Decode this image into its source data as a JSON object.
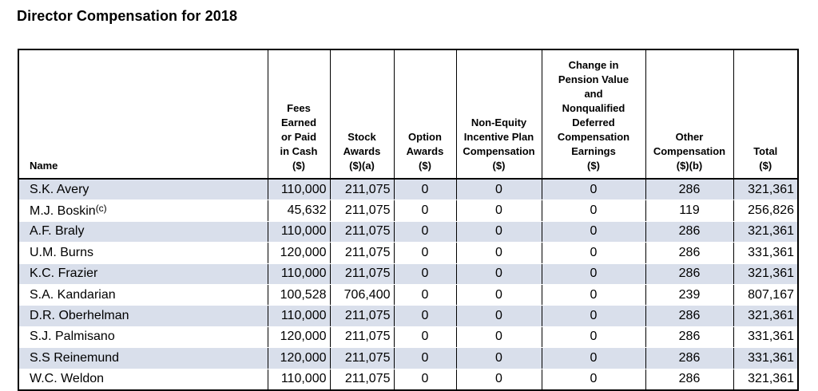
{
  "page": {
    "title": "Director Compensation for 2018"
  },
  "table": {
    "headers": {
      "name": "Name",
      "fees": "Fees\nEarned\nor Paid\nin Cash\n($)",
      "stock": "Stock\nAwards\n($)(a)",
      "option": "Option\nAwards\n($)",
      "non_equity": "Non-Equity\nIncentive Plan\nCompensation\n($)",
      "pension": "Change in\nPension Value\nand\nNonqualified\nDeferred\nCompensation\nEarnings\n($)",
      "other": "Other\nCompensation\n($)(b)",
      "total": "Total\n($)"
    },
    "rows": [
      {
        "name": "S.K. Avery",
        "note": "",
        "fees": "110,000",
        "stock": "211,075",
        "option": "0",
        "non_equity": "0",
        "pension": "0",
        "other": "286",
        "total": "321,361"
      },
      {
        "name": "M.J. Boskin",
        "note": "(c)",
        "fees": "45,632",
        "stock": "211,075",
        "option": "0",
        "non_equity": "0",
        "pension": "0",
        "other": "119",
        "total": "256,826"
      },
      {
        "name": "A.F. Braly",
        "note": "",
        "fees": "110,000",
        "stock": "211,075",
        "option": "0",
        "non_equity": "0",
        "pension": "0",
        "other": "286",
        "total": "321,361"
      },
      {
        "name": "U.M. Burns",
        "note": "",
        "fees": "120,000",
        "stock": "211,075",
        "option": "0",
        "non_equity": "0",
        "pension": "0",
        "other": "286",
        "total": "331,361"
      },
      {
        "name": "K.C. Frazier",
        "note": "",
        "fees": "110,000",
        "stock": "211,075",
        "option": "0",
        "non_equity": "0",
        "pension": "0",
        "other": "286",
        "total": "321,361"
      },
      {
        "name": "S.A. Kandarian",
        "note": "",
        "fees": "100,528",
        "stock": "706,400",
        "option": "0",
        "non_equity": "0",
        "pension": "0",
        "other": "239",
        "total": "807,167"
      },
      {
        "name": "D.R. Oberhelman",
        "note": "",
        "fees": "110,000",
        "stock": "211,075",
        "option": "0",
        "non_equity": "0",
        "pension": "0",
        "other": "286",
        "total": "321,361"
      },
      {
        "name": "S.J. Palmisano",
        "note": "",
        "fees": "120,000",
        "stock": "211,075",
        "option": "0",
        "non_equity": "0",
        "pension": "0",
        "other": "286",
        "total": "331,361"
      },
      {
        "name": "S.S Reinemund",
        "note": "",
        "fees": "120,000",
        "stock": "211,075",
        "option": "0",
        "non_equity": "0",
        "pension": "0",
        "other": "286",
        "total": "331,361"
      },
      {
        "name": "W.C. Weldon",
        "note": "",
        "fees": "110,000",
        "stock": "211,075",
        "option": "0",
        "non_equity": "0",
        "pension": "0",
        "other": "286",
        "total": "321,361"
      }
    ]
  },
  "colors": {
    "row_shade": "#d9dfeb",
    "border": "#000000"
  }
}
